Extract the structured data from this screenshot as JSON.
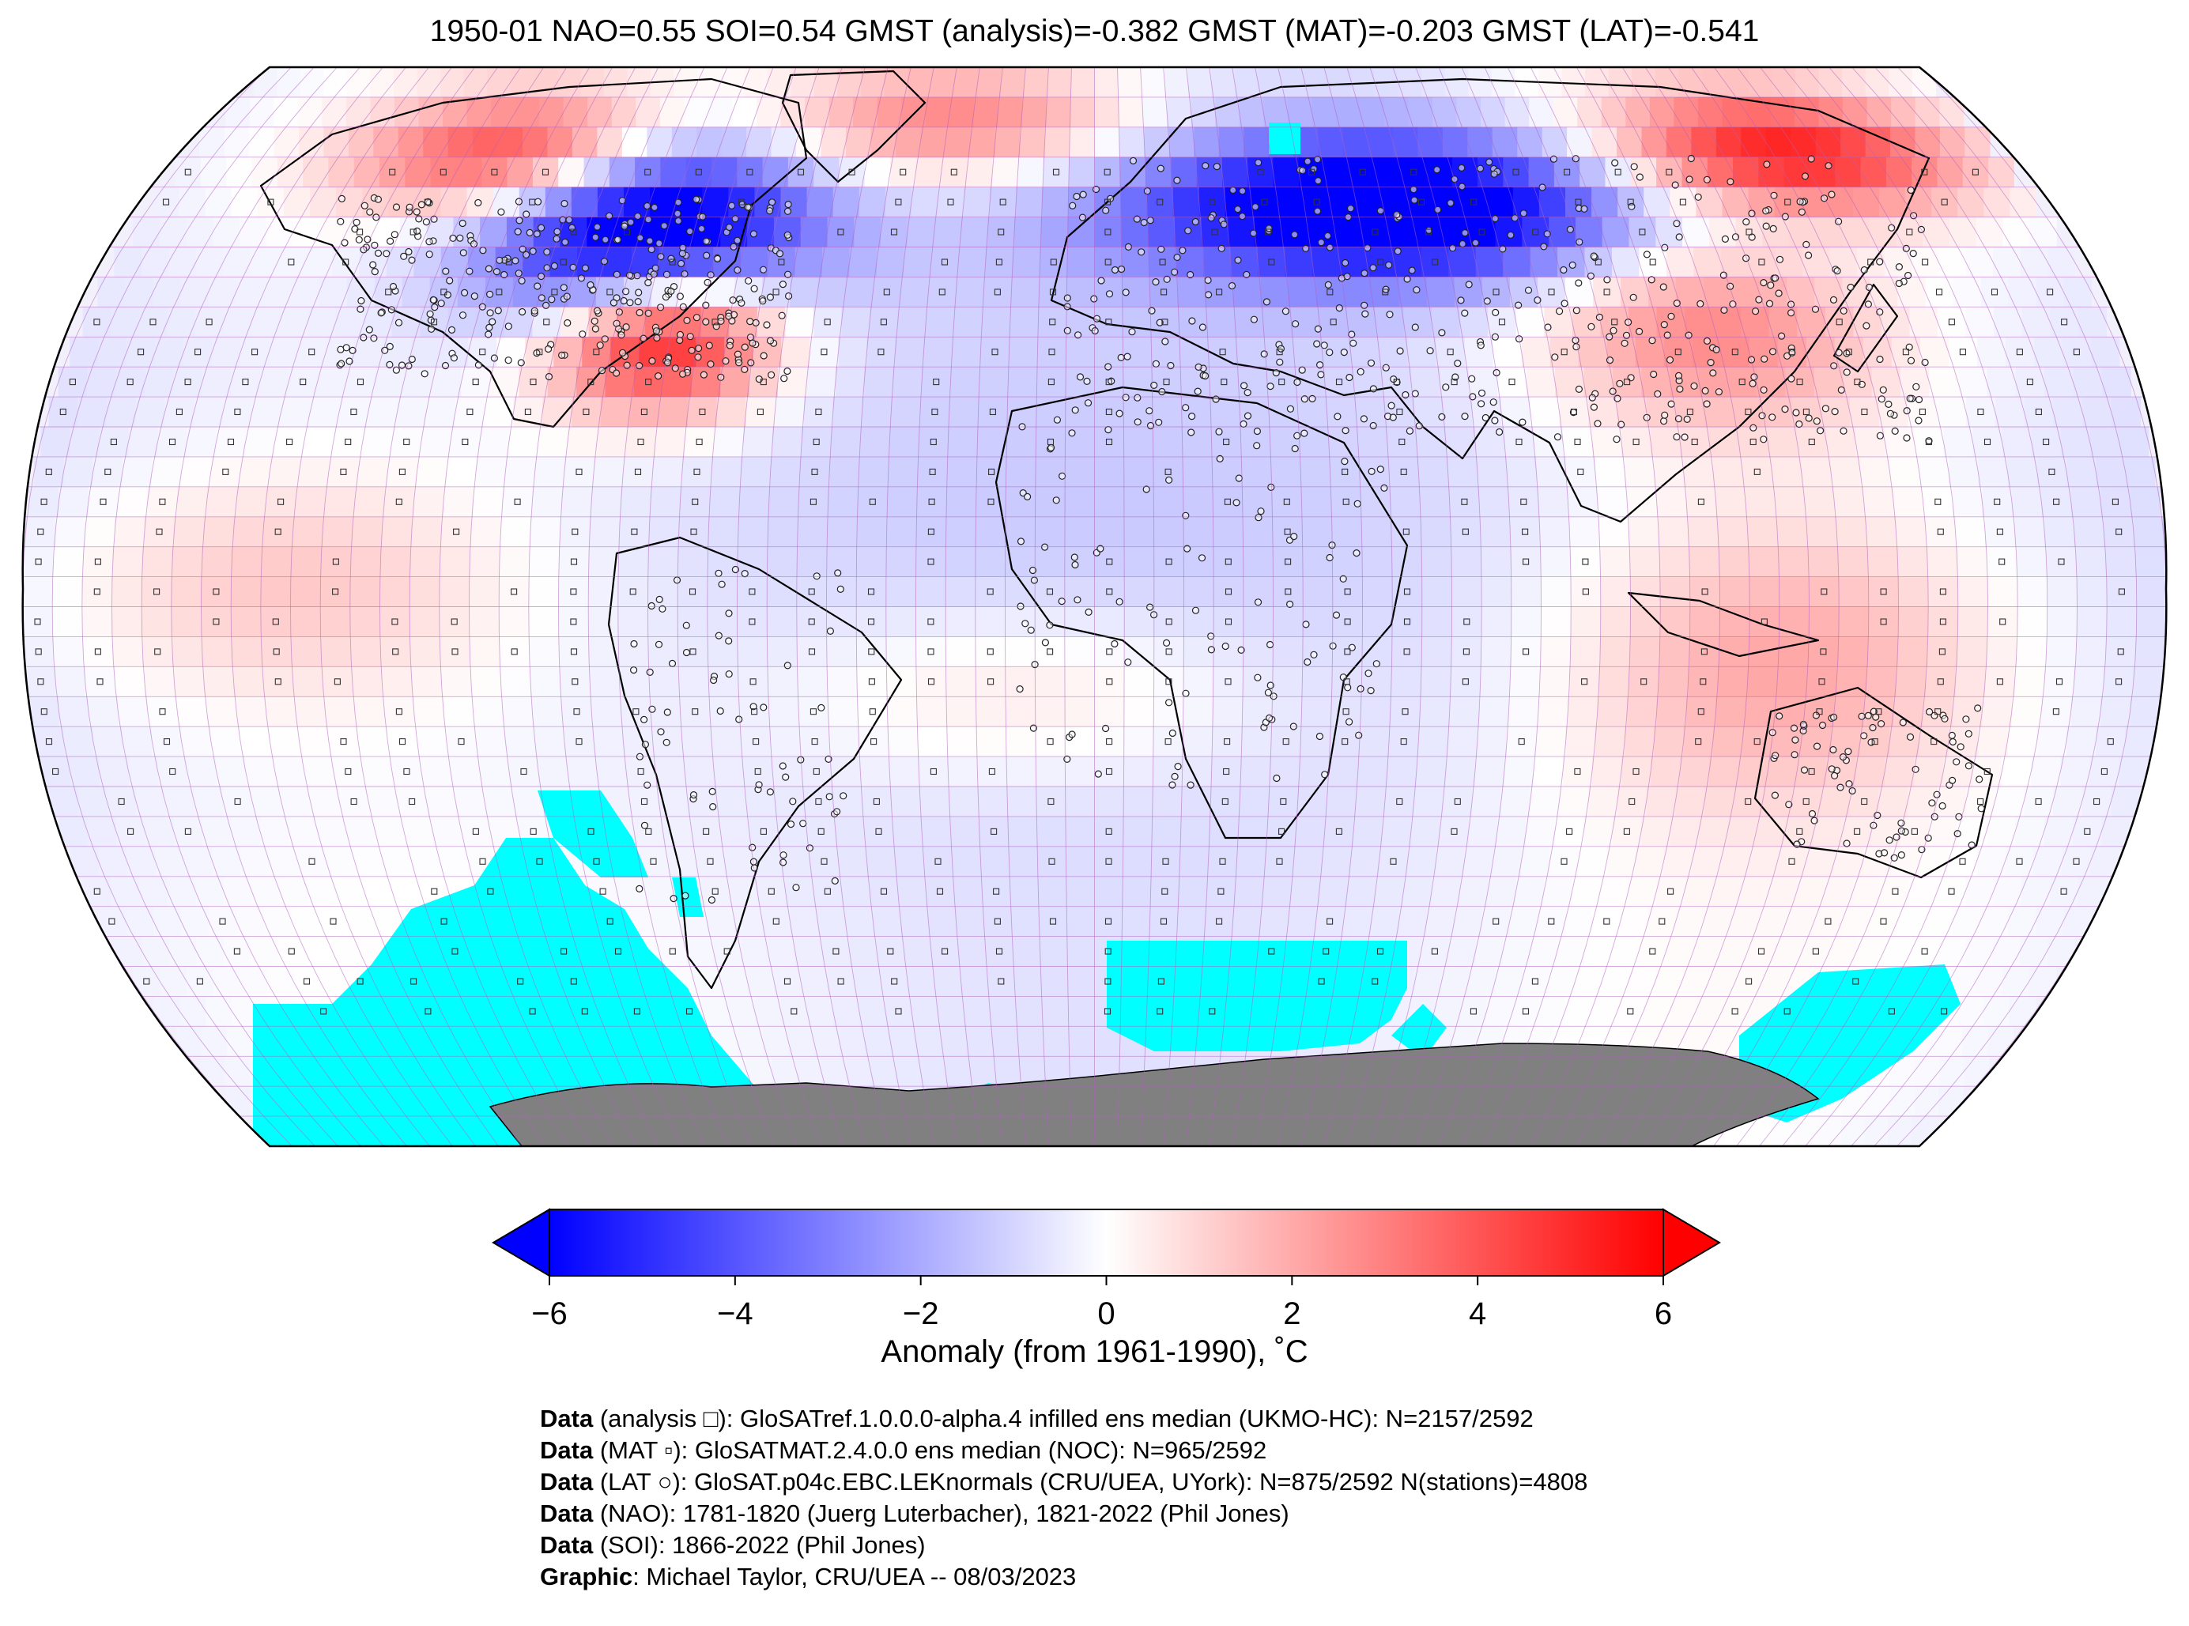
{
  "title": "1950-01 NAO=0.55 SOI=0.54 GMST (analysis)=-0.382 GMST (MAT)=-0.203 GMST (LAT)=-0.541",
  "colorbar": {
    "label": "Anomaly (from 1961-1990), ˚C",
    "ticks": [
      "−6",
      "−4",
      "−2",
      "0",
      "2",
      "4",
      "6"
    ],
    "min": -6,
    "max": 6,
    "colors": {
      "cold": "#0000ff",
      "neutral": "#ffffff",
      "warm": "#ff0000"
    }
  },
  "map": {
    "projection": "Robinson",
    "ice_color": "#00ffff",
    "antarctica_color": "#808080",
    "grid_color": "#b060c0"
  },
  "credits": [
    {
      "bold": "Data",
      "text": " (analysis □): GloSATref.1.0.0.0-alpha.4 infilled ens median (UKMO-HC): N=2157/2592"
    },
    {
      "bold": "Data",
      "text": " (MAT ▫): GloSATMAT.2.4.0.0 ens median (NOC): N=965/2592"
    },
    {
      "bold": "Data",
      "text": " (LAT ○): GloSAT.p04c.EBC.LEKnormals (CRU/UEA, UYork): N=875/2592 N(stations)=4808"
    },
    {
      "bold": "Data",
      "text": " (NAO): 1781-1820 (Juerg Luterbacher), 1821-2022 (Phil Jones)"
    },
    {
      "bold": "Data",
      "text": " (SOI): 1866-2022 (Phil Jones)"
    },
    {
      "bold": "Graphic",
      "text": ": Michael Taylor, CRU/UEA -- 08/03/2023"
    }
  ]
}
